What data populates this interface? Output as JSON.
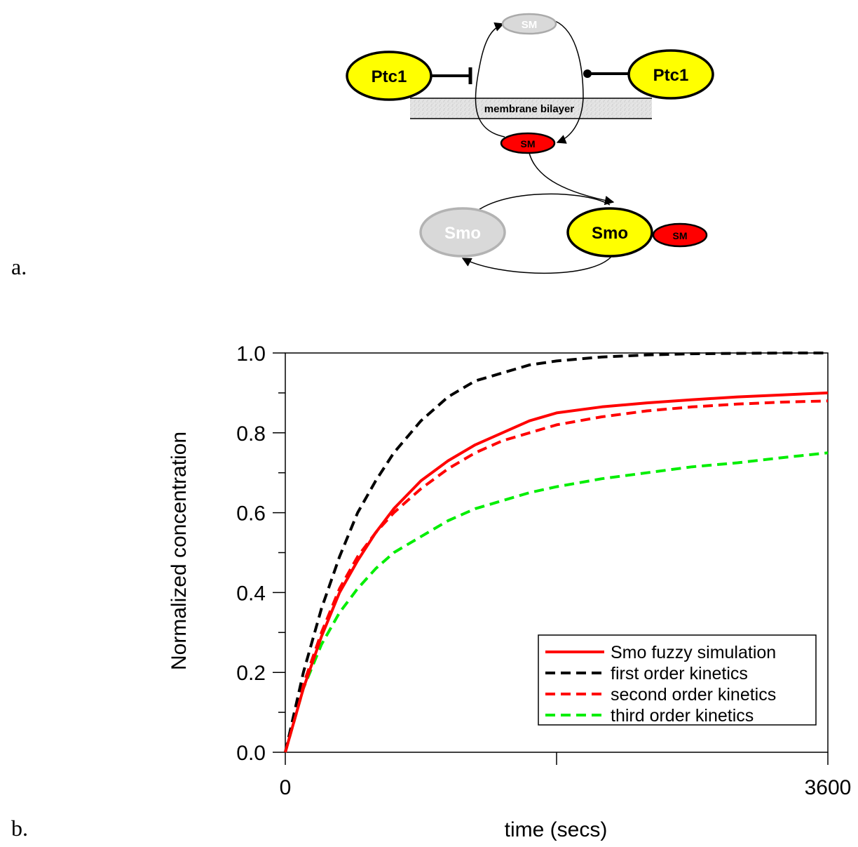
{
  "panel_labels": {
    "a": "a.",
    "b": "b."
  },
  "diagram": {
    "ptc_left": "Ptc1",
    "ptc_right": "Ptc1",
    "membrane": "membrane bilayer",
    "sm_top": "SM",
    "sm_mid": "SM",
    "smo_inactive": "Smo",
    "smo_active": "Smo",
    "sm_bound": "SM",
    "colors": {
      "yellow": "#ffff00",
      "red": "#ff0000",
      "grey": "#d0d0d0"
    }
  },
  "chart_data": {
    "type": "line",
    "xlabel": "time (secs)",
    "ylabel": "Normalized concentration",
    "xlim": [
      0,
      3600
    ],
    "ylim": [
      0,
      1.0
    ],
    "x_ticks": [
      "0",
      "3600"
    ],
    "y_ticks": [
      "0.0",
      "0.2",
      "0.4",
      "0.6",
      "0.8",
      "1.0"
    ],
    "legend_position": "bottom-right",
    "series": [
      {
        "name": "Smo fuzzy simulation",
        "color": "#ff0000",
        "dash": "solid",
        "x": [
          0,
          120,
          240,
          360,
          480,
          600,
          720,
          900,
          1080,
          1260,
          1440,
          1620,
          1800,
          2100,
          2400,
          2700,
          3000,
          3300,
          3600
        ],
        "y": [
          0,
          0.16,
          0.29,
          0.4,
          0.48,
          0.55,
          0.61,
          0.68,
          0.73,
          0.77,
          0.8,
          0.83,
          0.85,
          0.865,
          0.875,
          0.883,
          0.89,
          0.895,
          0.9
        ]
      },
      {
        "name": "first order kinetics",
        "color": "#000000",
        "dash": "dashed",
        "x": [
          0,
          120,
          240,
          360,
          480,
          600,
          720,
          900,
          1080,
          1260,
          1440,
          1620,
          1800,
          2100,
          2400,
          2700,
          3000,
          3300,
          3600
        ],
        "y": [
          0,
          0.2,
          0.36,
          0.49,
          0.6,
          0.68,
          0.75,
          0.83,
          0.89,
          0.93,
          0.95,
          0.97,
          0.98,
          0.99,
          0.995,
          0.998,
          0.999,
          1.0,
          1.0
        ]
      },
      {
        "name": "second order kinetics",
        "color": "#ff0000",
        "dash": "dashed",
        "x": [
          0,
          120,
          240,
          360,
          480,
          600,
          720,
          900,
          1080,
          1260,
          1440,
          1620,
          1800,
          2100,
          2400,
          2700,
          3000,
          3300,
          3600
        ],
        "y": [
          0,
          0.17,
          0.3,
          0.41,
          0.49,
          0.55,
          0.6,
          0.66,
          0.71,
          0.75,
          0.78,
          0.8,
          0.82,
          0.84,
          0.855,
          0.865,
          0.872,
          0.877,
          0.88
        ]
      },
      {
        "name": "third order kinetics",
        "color": "#00ee00",
        "dash": "dashed",
        "x": [
          0,
          120,
          240,
          360,
          480,
          600,
          720,
          900,
          1080,
          1260,
          1440,
          1620,
          1800,
          2100,
          2400,
          2700,
          3000,
          3300,
          3600
        ],
        "y": [
          0,
          0.16,
          0.27,
          0.35,
          0.41,
          0.46,
          0.5,
          0.54,
          0.58,
          0.61,
          0.63,
          0.65,
          0.665,
          0.685,
          0.7,
          0.715,
          0.725,
          0.738,
          0.75
        ]
      }
    ]
  }
}
